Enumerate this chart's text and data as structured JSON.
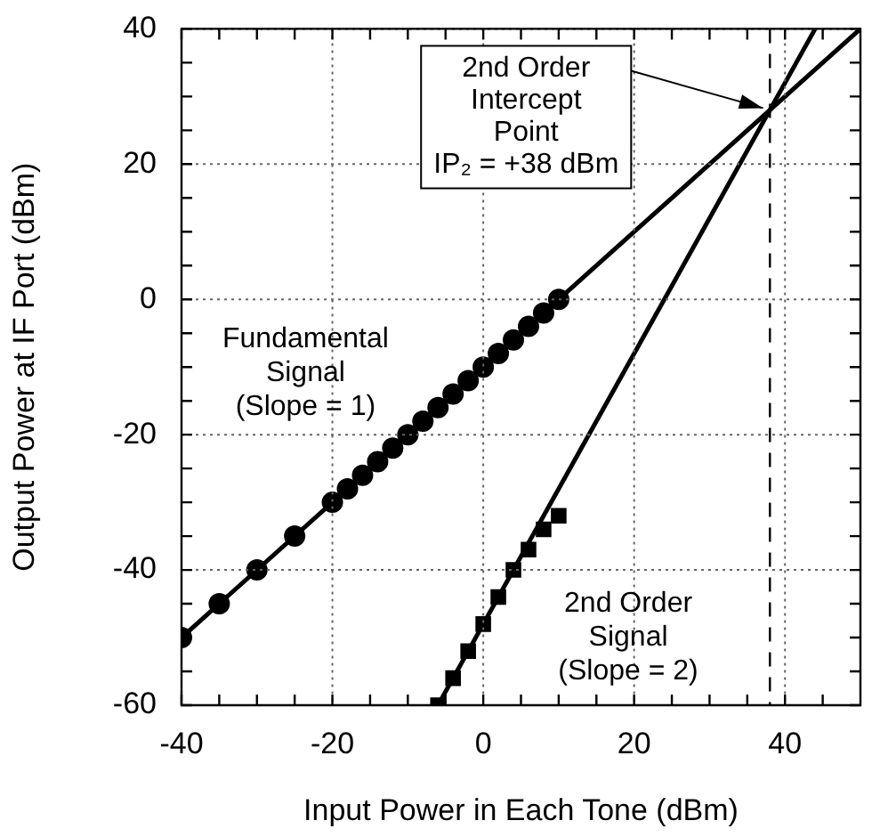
{
  "chart_data": {
    "type": "scatter",
    "xlabel": "Input Power in Each Tone (dBm)",
    "ylabel": "Output Power at IF Port (dBm)",
    "xlim": [
      -40,
      50
    ],
    "ylim": [
      -60,
      40
    ],
    "xticks": [
      -40,
      {
        "value": -35,
        "label": null
      },
      {
        "value": -30,
        "label": null
      },
      {
        "value": -25,
        "label": null
      },
      -20,
      {
        "value": -15,
        "label": null
      },
      {
        "value": -10,
        "label": null
      },
      {
        "value": -5,
        "label": null
      },
      0,
      {
        "value": 5,
        "label": null
      },
      {
        "value": 10,
        "label": null
      },
      {
        "value": 15,
        "label": null
      },
      20,
      {
        "value": 25,
        "label": null
      },
      {
        "value": 30,
        "label": null
      },
      {
        "value": 35,
        "label": null
      },
      40,
      {
        "value": 45,
        "label": null
      }
    ],
    "yticks": [
      -60,
      {
        "value": -55,
        "label": null
      },
      {
        "value": -50,
        "label": null
      },
      {
        "value": -45,
        "label": null
      },
      -40,
      {
        "value": -35,
        "label": null
      },
      {
        "value": -30,
        "label": null
      },
      {
        "value": -25,
        "label": null
      },
      -20,
      {
        "value": -15,
        "label": null
      },
      {
        "value": -10,
        "label": null
      },
      {
        "value": -5,
        "label": null
      },
      0,
      {
        "value": 5,
        "label": null
      },
      {
        "value": 10,
        "label": null
      },
      {
        "value": 15,
        "label": null
      },
      20,
      {
        "value": 25,
        "label": null
      },
      {
        "value": 30,
        "label": null
      },
      {
        "value": 35,
        "label": null
      },
      40
    ],
    "grid": true,
    "legend": false,
    "series": [
      {
        "name": "Fundamental\nSignal\n(Slope = 1)",
        "type": "scatter",
        "marker": "circle",
        "color": "#000000",
        "x": [
          -40,
          -35,
          -30,
          -25,
          -20,
          -18,
          -16,
          -14,
          -12,
          -10,
          -8,
          -6,
          -4,
          -2,
          0,
          2,
          4,
          6,
          8,
          10
        ],
        "values": [
          -50,
          -45,
          -40,
          -35,
          -30,
          -28,
          -26,
          -24,
          -22,
          -20,
          -18,
          -16,
          -14,
          -12,
          -10,
          -8,
          -6,
          -4,
          -2,
          0
        ]
      },
      {
        "type": "line",
        "marker": "none",
        "color": "#000000",
        "x": [
          -40,
          50
        ],
        "values": [
          -50,
          40
        ]
      },
      {
        "name": "2nd Order\nSignal\n(Slope = 2)",
        "type": "scatter",
        "marker": "square",
        "color": "#000000",
        "x": [
          -6,
          -4,
          -2,
          0,
          2,
          4,
          6,
          8,
          10
        ],
        "values": [
          -60,
          -56,
          -52,
          -48,
          -44,
          -40,
          -37,
          -34,
          -32
        ]
      },
      {
        "type": "line",
        "marker": "none",
        "color": "#000000",
        "x": [
          -6,
          44
        ],
        "values": [
          -60,
          40
        ]
      }
    ],
    "ref_lines": [
      {
        "axis": "x",
        "value": 38,
        "color": "#000000",
        "line_style": "dashed"
      }
    ],
    "annotations": [
      {
        "text": "2nd Order\nIntercept\nPoint\nIP₂ = +38 dBm",
        "x": 38,
        "y": 28
      }
    ]
  }
}
